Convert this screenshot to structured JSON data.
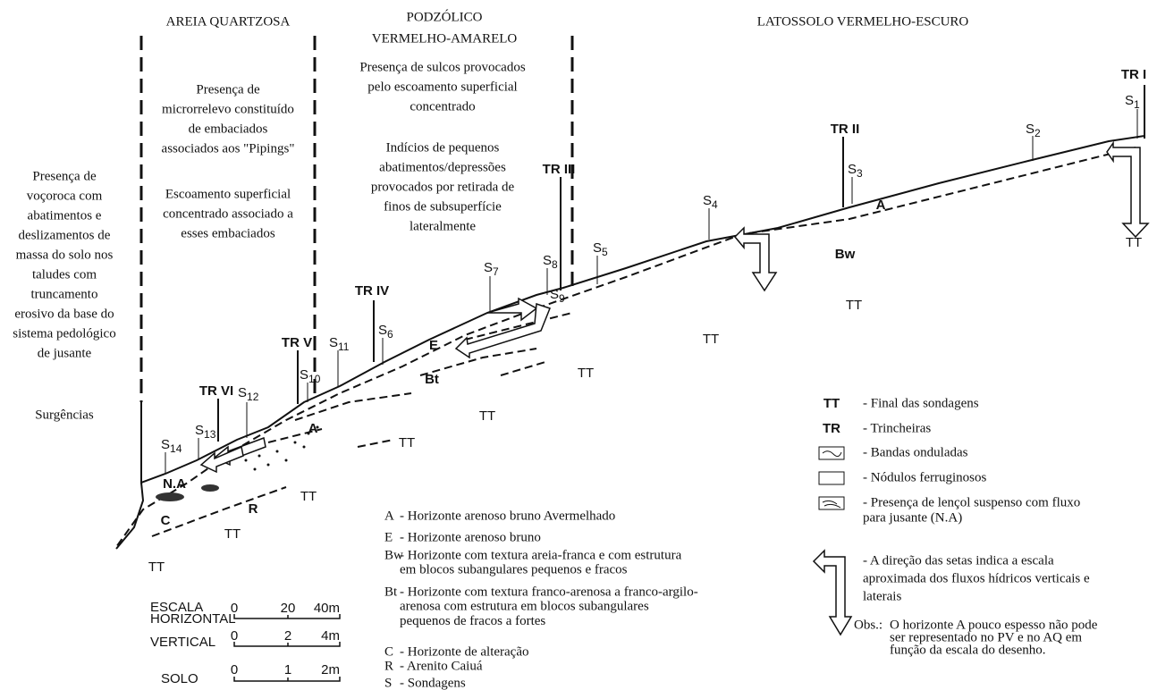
{
  "zones": [
    {
      "lines": [
        "AREIA QUARTZOSA"
      ]
    },
    {
      "lines": [
        "PODZÓLICO",
        "VERMELHO-AMARELO"
      ]
    },
    {
      "lines": [
        "LATOSSOLO VERMELHO-ESCURO"
      ]
    }
  ],
  "notes": [
    {
      "lines": [
        "Presença de",
        "voçoroca com",
        "abatimentos e",
        "deslizamentos de",
        "massa do solo nos",
        "taludes com",
        "truncamento",
        "erosivo da base do",
        "sistema pedológico",
        "de jusante"
      ]
    },
    {
      "lines": [
        "Surgências"
      ]
    },
    {
      "lines": [
        "Presença de",
        "microrrelevo constituído",
        "de embaciados",
        "associados aos \"Pipings\""
      ]
    },
    {
      "lines": [
        "Escoamento superficial",
        "concentrado associado a",
        "esses embaciados"
      ]
    },
    {
      "lines": [
        "Presença de sulcos provocados",
        "pelo escoamento superficial",
        "concentrado"
      ]
    },
    {
      "lines": [
        "Indícios de pequenos",
        "abatimentos/depressões",
        "provocados por retirada de",
        "finos de subsuperfície",
        "lateralmente"
      ]
    }
  ],
  "trenches": [
    "TR I",
    "TR II",
    "TR III",
    "TR IV",
    "TR V",
    "TR VI"
  ],
  "soundings": [
    {
      "letter": "S",
      "index": "1"
    },
    {
      "letter": "S",
      "index": "2"
    },
    {
      "letter": "S",
      "index": "3"
    },
    {
      "letter": "S",
      "index": "4"
    },
    {
      "letter": "S",
      "index": "5"
    },
    {
      "letter": "S",
      "index": "6"
    },
    {
      "letter": "S",
      "index": "7"
    },
    {
      "letter": "S",
      "index": "8"
    },
    {
      "letter": "S",
      "index": "9"
    },
    {
      "letter": "S",
      "index": "10"
    },
    {
      "letter": "S",
      "index": "11"
    },
    {
      "letter": "S",
      "index": "12"
    },
    {
      "letter": "S",
      "index": "13"
    },
    {
      "letter": "S",
      "index": "14"
    }
  ],
  "horizon_labels": [
    "A",
    "Bw",
    "E",
    "Bt",
    "A",
    "R",
    "C",
    "N.A"
  ],
  "end_marks": [
    "TT",
    "TT",
    "TT",
    "TT",
    "TT",
    "TT",
    "TT",
    "TT",
    "TT"
  ],
  "horizon_legend": [
    {
      "code": "A",
      "lines": [
        "- Horizonte arenoso bruno Avermelhado"
      ]
    },
    {
      "code": "E",
      "lines": [
        "- Horizonte arenoso bruno"
      ]
    },
    {
      "code": "Bw",
      "lines": [
        "- Horizonte com textura areia-franca e com estrutura",
        "em blocos subangulares pequenos e fracos"
      ]
    },
    {
      "code": "Bt",
      "lines": [
        "- Horizonte com textura franco-arenosa a franco-argilo-",
        "arenosa com estrutura em blocos subangulares",
        "pequenos de fracos a fortes"
      ]
    },
    {
      "code": "C",
      "lines": [
        "- Horizonte de alteração"
      ]
    },
    {
      "code": "R",
      "lines": [
        "- Arenito Caiuá"
      ]
    },
    {
      "code": "S",
      "lines": [
        "- Sondagens"
      ]
    }
  ],
  "symbol_legend": [
    {
      "symbol": "TT",
      "lines": [
        "- Final das sondagens"
      ]
    },
    {
      "symbol": "TR",
      "lines": [
        "- Trincheiras"
      ]
    },
    {
      "lines": [
        "- Bandas onduladas"
      ]
    },
    {
      "lines": [
        "- Nódulos ferruginosos"
      ]
    },
    {
      "lines": [
        "- Presença de lençol suspenso com fluxo",
        "para jusante (N.A)"
      ]
    },
    {
      "lines": [
        "- A direção das setas indica a escala",
        "aproximada dos fluxos hídricos verticais e",
        "laterais"
      ]
    }
  ],
  "observation": {
    "label": "Obs.:",
    "lines": [
      "O horizonte A pouco espesso não pode",
      "ser representado no PV e no AQ em",
      "função da escala do desenho."
    ]
  },
  "scales": [
    {
      "lines": [
        "ESCALA",
        "HORIZONTAL"
      ],
      "ticks": [
        "0",
        "20",
        "40m"
      ]
    },
    {
      "lines": [
        "VERTICAL"
      ],
      "ticks": [
        "0",
        "2",
        "4m"
      ]
    },
    {
      "lines": [
        "SOLO"
      ],
      "ticks": [
        "0",
        "1",
        "2m"
      ]
    }
  ]
}
